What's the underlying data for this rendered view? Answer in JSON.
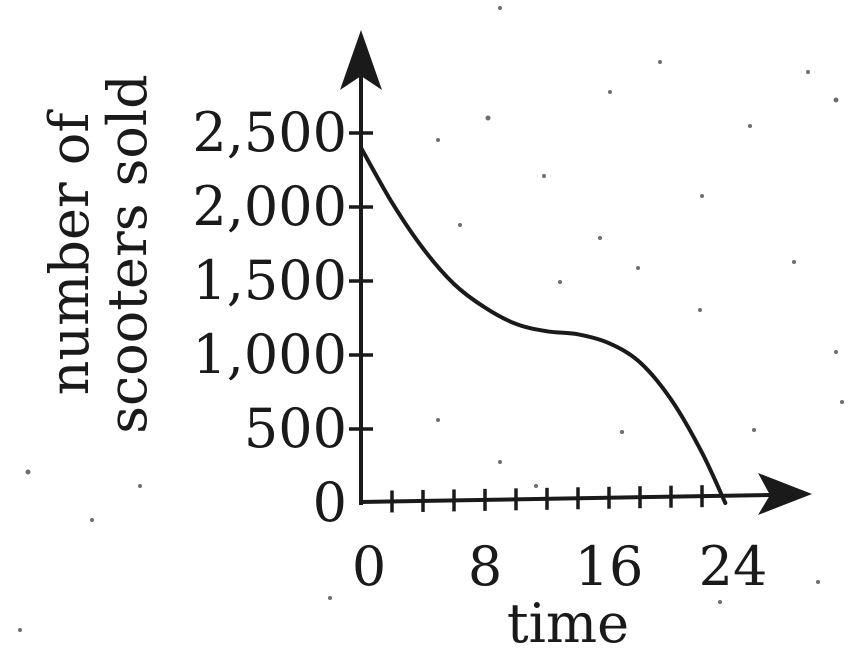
{
  "chart_data": {
    "type": "line",
    "xlabel": "time",
    "ylabel_lines": [
      "number of",
      "scooters sold"
    ],
    "x_ticks": [
      0,
      8,
      16,
      24
    ],
    "x_tick_labels": [
      "0",
      "8",
      "16",
      "24"
    ],
    "x_minor_step": 2,
    "y_ticks": [
      0,
      500,
      1000,
      1500,
      2000,
      2500
    ],
    "y_tick_labels": [
      "0",
      "500",
      "1,000",
      "1,500",
      "2,000",
      "2,500"
    ],
    "xlim": [
      0,
      24
    ],
    "ylim": [
      0,
      2500
    ],
    "grid": false,
    "series": [
      {
        "x": [
          0,
          2,
          4,
          6,
          8,
          10,
          12,
          14,
          16,
          18,
          20,
          22,
          23.5
        ],
        "y": [
          2400,
          2030,
          1720,
          1480,
          1320,
          1210,
          1160,
          1140,
          1080,
          950,
          700,
          340,
          0
        ]
      }
    ]
  }
}
